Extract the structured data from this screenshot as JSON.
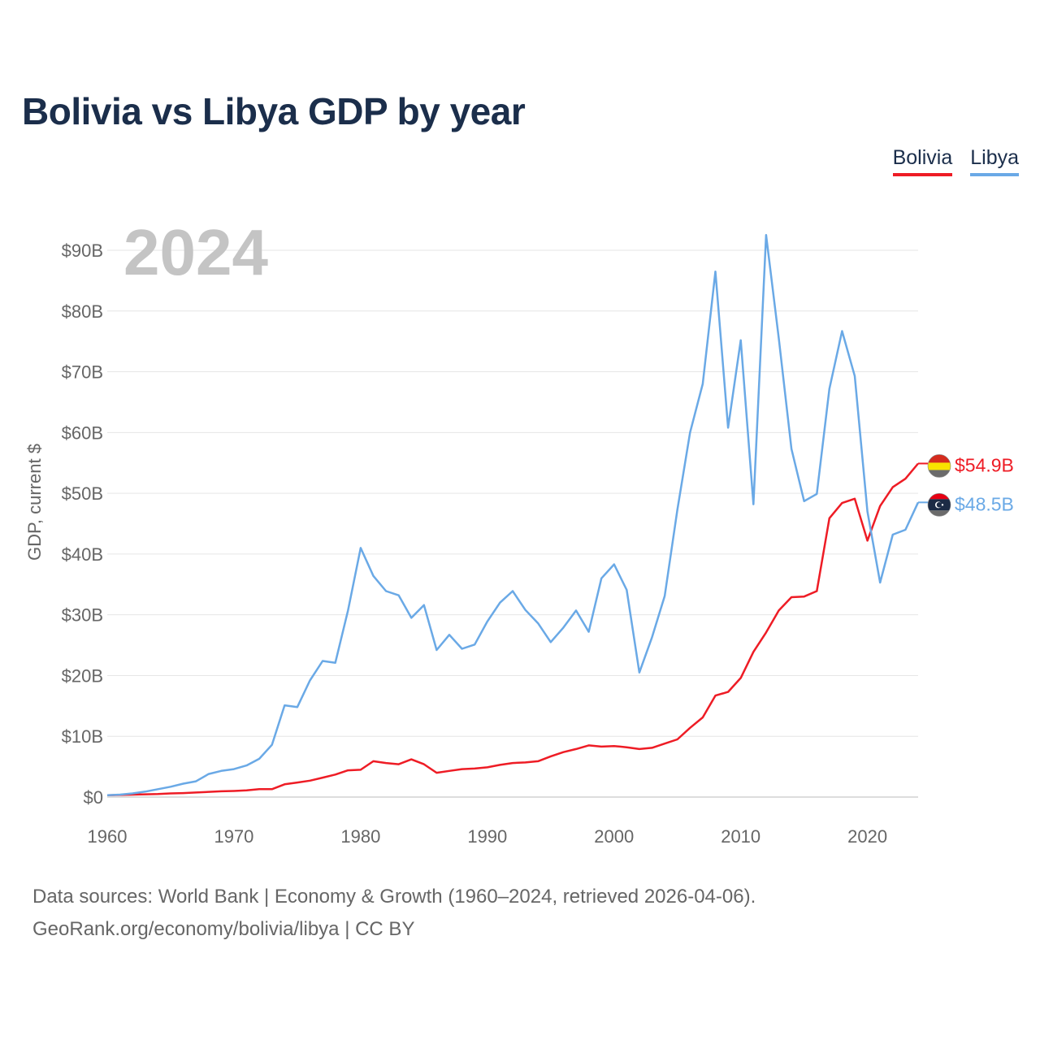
{
  "title": "Bolivia vs Libya GDP by year",
  "year_watermark": "2024",
  "legend": [
    {
      "name": "Bolivia",
      "color": "#ee1c25"
    },
    {
      "name": "Libya",
      "color": "#6aa9e6"
    }
  ],
  "footer": {
    "line1": "Data sources: World Bank | Economy & Growth (1960–2024, retrieved 2026-04-06).",
    "line2": "GeoRank.org/economy/bolivia/libya | CC BY"
  },
  "chart_data": {
    "type": "line",
    "title": "Bolivia vs Libya GDP by year",
    "xlabel": "",
    "ylabel": "GDP, current $",
    "xlim": [
      1960,
      2024
    ],
    "ylim": [
      0,
      90
    ],
    "x_ticks": [
      1960,
      1970,
      1980,
      1990,
      2000,
      2010,
      2020
    ],
    "y_ticks": [
      {
        "value": 0,
        "label": "$0"
      },
      {
        "value": 10,
        "label": "$10B"
      },
      {
        "value": 20,
        "label": "$20B"
      },
      {
        "value": 30,
        "label": "$30B"
      },
      {
        "value": 40,
        "label": "$40B"
      },
      {
        "value": 50,
        "label": "$50B"
      },
      {
        "value": 60,
        "label": "$60B"
      },
      {
        "value": 70,
        "label": "$70B"
      },
      {
        "value": 80,
        "label": "$80B"
      },
      {
        "value": 90,
        "label": "$90B"
      }
    ],
    "grid": true,
    "legend_position": "top-right",
    "x_start": 1960,
    "series": [
      {
        "name": "Bolivia",
        "color": "#ee1c25",
        "end_label": "$54.9B",
        "values": [
          0.3,
          0.35,
          0.4,
          0.45,
          0.5,
          0.6,
          0.65,
          0.75,
          0.85,
          0.95,
          1.0,
          1.1,
          1.3,
          1.3,
          2.1,
          2.4,
          2.7,
          3.2,
          3.7,
          4.4,
          4.5,
          5.9,
          5.6,
          5.4,
          6.2,
          5.4,
          4.0,
          4.3,
          4.6,
          4.7,
          4.9,
          5.3,
          5.6,
          5.7,
          5.9,
          6.7,
          7.4,
          7.9,
          8.5,
          8.3,
          8.4,
          8.2,
          7.9,
          8.1,
          8.8,
          9.5,
          11.4,
          13.1,
          16.7,
          17.3,
          19.6,
          23.9,
          27.1,
          30.7,
          32.9,
          33.0,
          33.9,
          45.9,
          48.4,
          49.1,
          42.2,
          47.9,
          51.0,
          52.4,
          54.9
        ]
      },
      {
        "name": "Libya",
        "color": "#6aa9e6",
        "end_label": "$48.5B",
        "values": [
          0.3,
          0.4,
          0.6,
          0.9,
          1.3,
          1.7,
          2.2,
          2.6,
          3.8,
          4.3,
          4.6,
          5.2,
          6.3,
          8.6,
          15.1,
          14.8,
          19.2,
          22.4,
          22.1,
          30.7,
          41.0,
          36.4,
          33.9,
          33.2,
          29.5,
          31.6,
          24.2,
          26.7,
          24.4,
          25.1,
          28.9,
          32.0,
          33.9,
          30.8,
          28.6,
          25.5,
          27.9,
          30.7,
          27.2,
          36.0,
          38.3,
          34.1,
          20.5,
          26.3,
          33.1,
          47.3,
          60.0,
          68.0,
          86.5,
          60.8,
          75.2,
          48.2,
          92.5,
          75.5,
          57.3,
          48.7,
          49.9,
          67.2,
          76.7,
          69.3,
          47.0,
          35.3,
          43.2,
          44.0,
          48.5
        ]
      }
    ]
  }
}
